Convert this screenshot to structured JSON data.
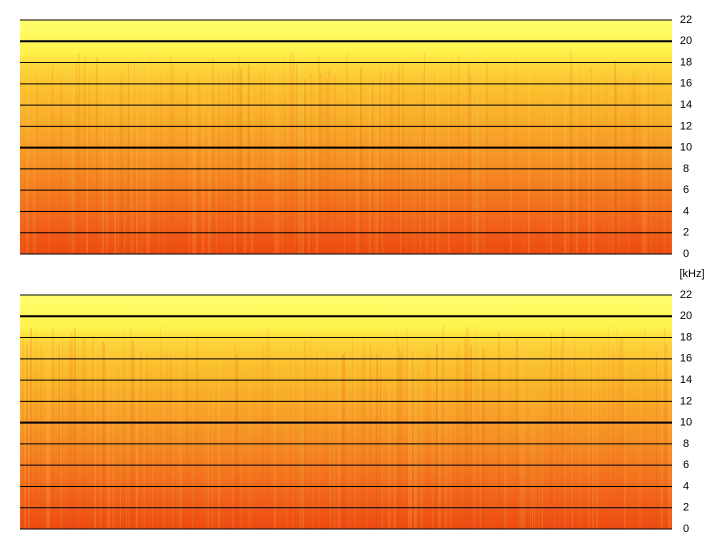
{
  "chart_data": [
    {
      "type": "spectrogram",
      "ylabel": "[kHz]",
      "ylim": [
        0,
        22
      ],
      "yticks": [
        0,
        2,
        4,
        6,
        8,
        10,
        12,
        14,
        16,
        18,
        20,
        22
      ],
      "grid": true
    },
    {
      "type": "spectrogram",
      "ylim": [
        0,
        22
      ],
      "yticks": [
        0,
        2,
        4,
        6,
        8,
        10,
        12,
        14,
        16,
        18,
        20,
        22
      ],
      "grid": true
    }
  ]
}
